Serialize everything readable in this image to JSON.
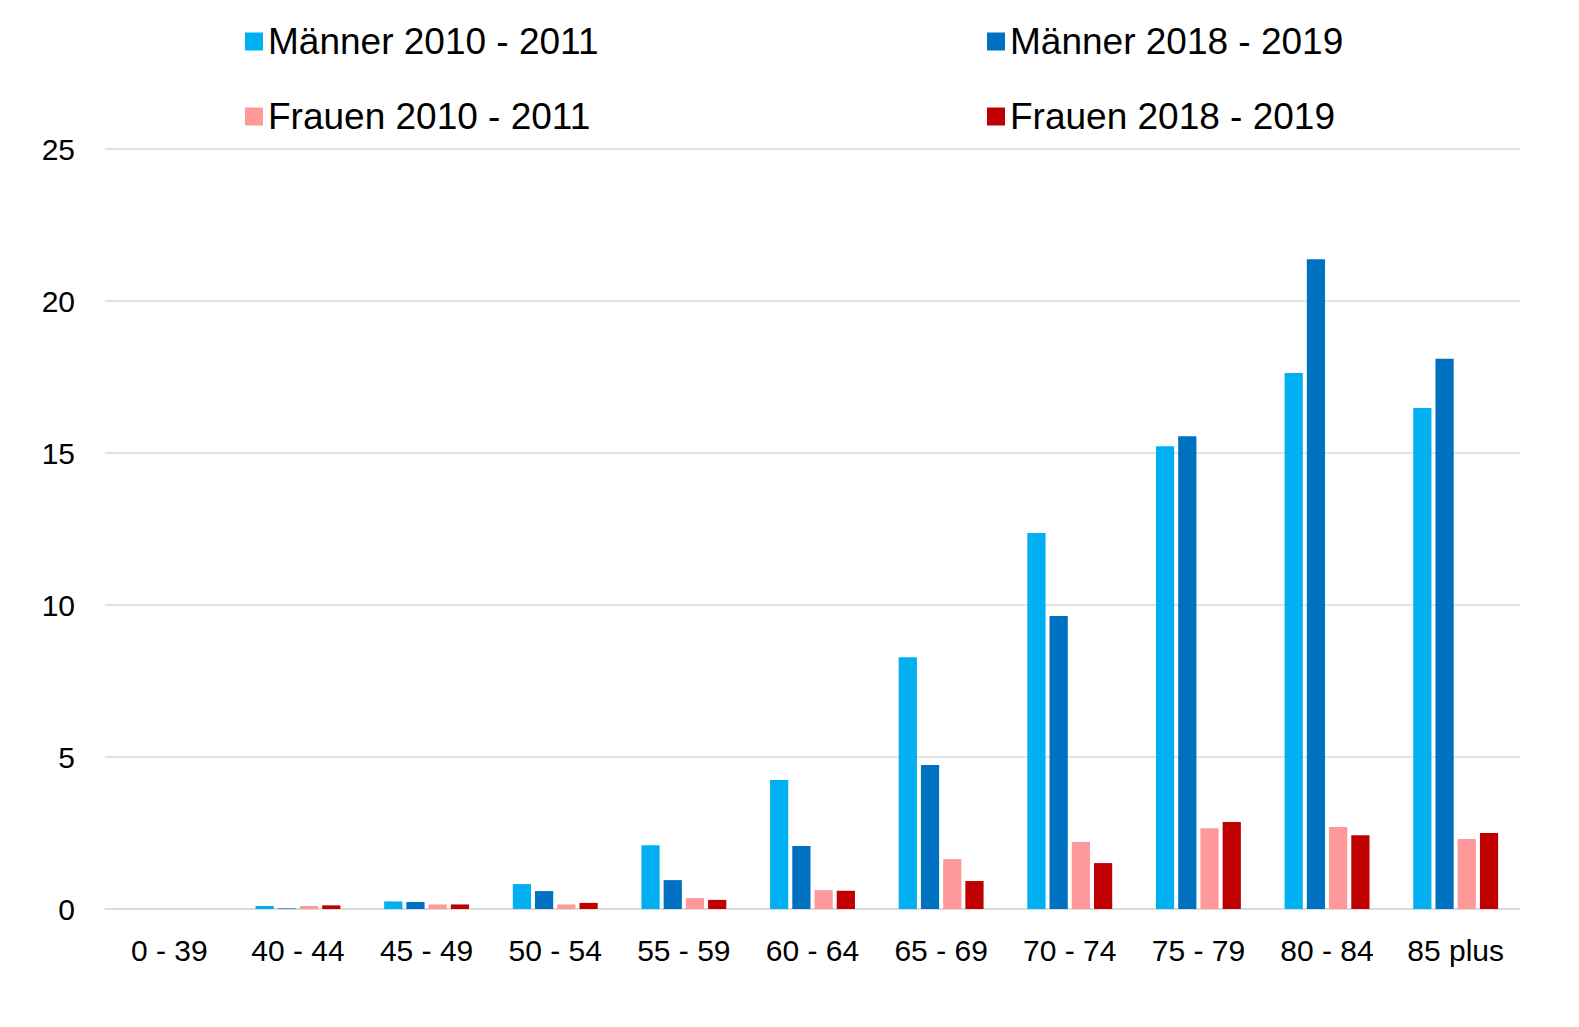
{
  "chart_data": {
    "type": "bar",
    "categories": [
      "0 - 39",
      "40 - 44",
      "45 - 49",
      "50 - 54",
      "55 - 59",
      "60 - 64",
      "65 - 69",
      "70 - 74",
      "75 - 79",
      "80 - 84",
      "85 plus"
    ],
    "series": [
      {
        "name": "Männer 2010 - 2011",
        "color": "#00b0f0",
        "values": [
          0,
          0.1,
          0.25,
          0.82,
          2.1,
          4.24,
          8.28,
          12.37,
          15.22,
          17.63,
          16.48
        ]
      },
      {
        "name": "Männer 2018 - 2019",
        "color": "#0070c0",
        "values": [
          0,
          0.02,
          0.23,
          0.59,
          0.95,
          2.07,
          4.74,
          9.64,
          15.55,
          21.37,
          18.1
        ]
      },
      {
        "name": "Frauen 2010 - 2011",
        "color": "#ff9999",
        "values": [
          0,
          0.1,
          0.15,
          0.15,
          0.36,
          0.62,
          1.64,
          2.2,
          2.66,
          2.7,
          2.3
        ]
      },
      {
        "name": "Frauen 2018 - 2019",
        "color": "#c00000",
        "values": [
          0,
          0.12,
          0.15,
          0.2,
          0.3,
          0.6,
          0.92,
          1.51,
          2.86,
          2.43,
          2.5
        ]
      }
    ],
    "ylim": [
      0,
      25
    ],
    "yticks": [
      0,
      5,
      10,
      15,
      20,
      25
    ],
    "grid": true,
    "legend": "top"
  }
}
